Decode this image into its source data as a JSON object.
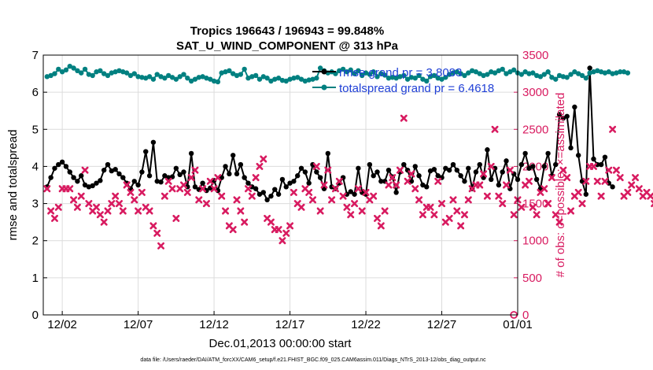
{
  "chart_data": {
    "type": "line",
    "title_line1": "Tropics 196643 / 196943 = 99.848%",
    "title_line2": "SAT_U_WIND_COMPONENT @ 313 hPa",
    "xlabel": "Dec.01,2013 00:00:00 start",
    "ylabel_left": "rmse and totalspread",
    "ylabel_right": "# of obs: o=possible; ×=assimilated",
    "footnote": "data file: /Users/raeder/DAI/ATM_forcXX/CAM6_setup/f.e21.FHIST_BGC.f09_025.CAM6assim.011/Diags_NTrS_2013-12/obs_diag_output.nc",
    "xlim": [
      0,
      31.25
    ],
    "ylim_left": [
      0,
      7
    ],
    "ylim_right": [
      0,
      3500
    ],
    "x_tick_positions": [
      1.25,
      6.25,
      11.25,
      16.25,
      21.25,
      26.25,
      31.25
    ],
    "x_tick_labels": [
      "12/02",
      "12/07",
      "12/12",
      "12/17",
      "12/22",
      "12/27",
      "01/01"
    ],
    "y_left_ticks": [
      0,
      1,
      2,
      3,
      4,
      5,
      6,
      7
    ],
    "y_right_ticks": [
      0,
      500,
      1000,
      1500,
      2000,
      2500,
      3000,
      3500
    ],
    "grid": true,
    "legend_position": "top-right",
    "series": [
      {
        "name": "rmse grand pr = 3.8083",
        "axis": "left",
        "color": "#000000",
        "marker": "filled-circle",
        "x_start": 0.25,
        "x_step": 0.25,
        "values": [
          3.45,
          3.7,
          3.95,
          4.05,
          4.12,
          4.0,
          3.85,
          3.7,
          3.6,
          3.75,
          3.5,
          3.45,
          3.48,
          3.55,
          3.62,
          3.9,
          4.05,
          3.88,
          3.92,
          3.8,
          3.7,
          3.55,
          3.4,
          3.6,
          3.5,
          3.85,
          4.4,
          3.75,
          4.65,
          3.6,
          3.58,
          3.75,
          3.7,
          3.72,
          3.95,
          3.78,
          3.85,
          3.45,
          4.35,
          3.45,
          3.38,
          3.55,
          3.35,
          3.42,
          3.62,
          3.35,
          3.7,
          4.0,
          3.8,
          4.3,
          3.8,
          4.05,
          3.7,
          3.55,
          3.45,
          3.4,
          3.25,
          3.3,
          3.1,
          3.2,
          3.38,
          3.25,
          3.65,
          3.45,
          3.55,
          3.6,
          3.75,
          3.95,
          3.85,
          3.55,
          4.05,
          3.85,
          3.7,
          3.4,
          4.35,
          3.45,
          3.4,
          3.55,
          3.7,
          3.25,
          3.32,
          3.25,
          3.95,
          3.3,
          3.25,
          4.05,
          3.75,
          3.85,
          3.6,
          3.6,
          3.9,
          3.72,
          3.3,
          3.85,
          4.05,
          3.9,
          3.6,
          4.0,
          3.75,
          3.5,
          3.45,
          3.88,
          3.92,
          3.75,
          3.7,
          3.95,
          3.9,
          4.05,
          3.9,
          3.75,
          3.6,
          3.95,
          3.4,
          3.85,
          4.05,
          3.7,
          4.45,
          3.65,
          3.95,
          3.5,
          3.85,
          4.15,
          3.4,
          3.8,
          3.65,
          4.05,
          4.35,
          3.95,
          4.0,
          3.65,
          3.4,
          4.0,
          4.35,
          3.75,
          4.05,
          5.4,
          5.3,
          5.35,
          4.5,
          5.6,
          4.3,
          3.6,
          3.25,
          6.65,
          4.2,
          4.05,
          4.05,
          4.25,
          3.55,
          3.45
        ]
      },
      {
        "name": "totalspread grand pr = 6.4618",
        "axis": "left",
        "color": "#008080",
        "marker": "filled-circle",
        "x_start": 0.25,
        "x_step": 0.25,
        "values": [
          6.42,
          6.45,
          6.5,
          6.62,
          6.55,
          6.6,
          6.7,
          6.65,
          6.58,
          6.52,
          6.62,
          6.48,
          6.45,
          6.55,
          6.58,
          6.5,
          6.45,
          6.52,
          6.55,
          6.58,
          6.55,
          6.52,
          6.45,
          6.5,
          6.42,
          6.4,
          6.38,
          6.42,
          6.35,
          6.48,
          6.42,
          6.38,
          6.45,
          6.4,
          6.35,
          6.42,
          6.48,
          6.38,
          6.3,
          6.35,
          6.4,
          6.42,
          6.38,
          6.35,
          6.3,
          6.28,
          6.52,
          6.55,
          6.58,
          6.5,
          6.45,
          6.48,
          6.62,
          6.38,
          6.42,
          6.45,
          6.35,
          6.42,
          6.38,
          6.3,
          6.35,
          6.38,
          6.32,
          6.3,
          6.35,
          6.38,
          6.4,
          6.35,
          6.3,
          6.33,
          6.35,
          6.38,
          6.65,
          6.58,
          6.52,
          6.55,
          6.5,
          6.58,
          6.62,
          6.55,
          6.6,
          6.5,
          6.58,
          6.45,
          6.52,
          6.48,
          6.55,
          6.42,
          6.5,
          6.46,
          6.38,
          6.4,
          6.38,
          6.42,
          6.45,
          6.35,
          6.4,
          6.38,
          6.45,
          6.35,
          6.3,
          6.42,
          6.45,
          6.38,
          6.35,
          6.4,
          6.48,
          6.52,
          6.55,
          6.5,
          6.45,
          6.52,
          6.58,
          6.55,
          6.5,
          6.45,
          6.48,
          6.55,
          6.52,
          6.58,
          6.62,
          6.5,
          6.55,
          6.6,
          6.52,
          6.48,
          6.55,
          6.5,
          6.52,
          6.45,
          6.42,
          6.48,
          6.55,
          6.4,
          6.35,
          6.45,
          6.42,
          6.4,
          6.48,
          6.55,
          6.5,
          6.45,
          6.38,
          6.52,
          6.55,
          6.58,
          6.55,
          6.52,
          6.55,
          6.5,
          6.52,
          6.55,
          6.55,
          6.52
        ]
      },
      {
        "name": "obs possible",
        "axis": "right",
        "color": "#d81b60",
        "marker": "open-circle",
        "x": [
          31.0
        ],
        "values": [
          0
        ]
      },
      {
        "name": "obs assimilated",
        "axis": "right",
        "color": "#d81b60",
        "marker": "cross",
        "x_start": 0.25,
        "x_step": 0.25,
        "values": [
          1700,
          1400,
          1300,
          1450,
          1700,
          1700,
          1700,
          1550,
          1450,
          1600,
          1950,
          1500,
          1400,
          1450,
          1350,
          1250,
          1400,
          1500,
          1600,
          1500,
          1400,
          1750,
          1650,
          1550,
          1400,
          1650,
          1450,
          1400,
          1200,
          1100,
          930,
          1600,
          1800,
          1700,
          1300,
          1700,
          1750,
          1650,
          1850,
          1950,
          1550,
          1700,
          1500,
          1800,
          1700,
          1850,
          1600,
          1400,
          1200,
          1150,
          1550,
          1400,
          1250,
          1700,
          1600,
          1850,
          2000,
          2100,
          1300,
          1250,
          1150,
          1150,
          1000,
          1100,
          1200,
          1650,
          1500,
          1450,
          1700,
          1650,
          1550,
          2000,
          1400,
          1750,
          1950,
          1550,
          1700,
          1800,
          1600,
          1450,
          1350,
          1500,
          1700,
          1400,
          1650,
          1550,
          1600,
          1300,
          1200,
          1400,
          1750,
          1850,
          1750,
          1950,
          2650,
          1800,
          1900,
          1700,
          1550,
          1350,
          1450,
          1450,
          1350,
          1800,
          1500,
          1250,
          1300,
          1550,
          1400,
          1200,
          1350,
          1550,
          1700,
          1750,
          1750,
          1900,
          1600,
          2000,
          2500,
          1600,
          1500,
          1750,
          1950,
          1350,
          1550,
          1450,
          1750,
          1800,
          1450,
          1350,
          1650,
          1700,
          1500,
          1850,
          1350,
          1250,
          1950,
          1850,
          1400,
          1600,
          1650,
          1500,
          1800,
          2000,
          2000,
          1800,
          1600,
          1800,
          1950,
          2500,
          1950,
          1850,
          1600,
          1650,
          1750,
          1850,
          1700,
          1600,
          1650,
          1600,
          1500,
          1700
        ]
      }
    ]
  }
}
